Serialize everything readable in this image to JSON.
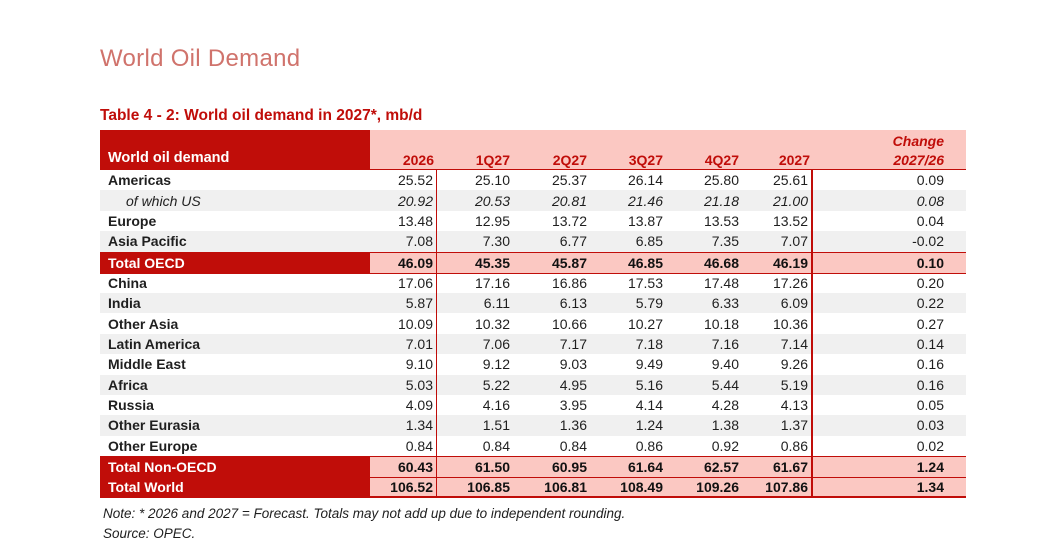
{
  "page_title": "World Oil Demand",
  "table": {
    "caption": "Table 4 - 2: World oil demand in 2027*, mb/d",
    "header": {
      "label": "World oil demand",
      "columns": [
        "2026",
        "1Q27",
        "2Q27",
        "3Q27",
        "4Q27",
        "2027"
      ],
      "change_label_line1": "Change",
      "change_label_line2": "2027/26"
    },
    "rows": [
      {
        "kind": "data",
        "label": "Americas",
        "values": [
          "25.52",
          "25.10",
          "25.37",
          "26.14",
          "25.80",
          "25.61"
        ],
        "change": "0.09"
      },
      {
        "kind": "sub",
        "label": "of which US",
        "values": [
          "20.92",
          "20.53",
          "20.81",
          "21.46",
          "21.18",
          "21.00"
        ],
        "change": "0.08"
      },
      {
        "kind": "data",
        "label": "Europe",
        "values": [
          "13.48",
          "12.95",
          "13.72",
          "13.87",
          "13.53",
          "13.52"
        ],
        "change": "0.04"
      },
      {
        "kind": "data",
        "label": "Asia Pacific",
        "values": [
          "7.08",
          "7.30",
          "6.77",
          "6.85",
          "7.35",
          "7.07"
        ],
        "change": "-0.02"
      },
      {
        "kind": "total",
        "label": "Total OECD",
        "values": [
          "46.09",
          "45.35",
          "45.87",
          "46.85",
          "46.68",
          "46.19"
        ],
        "change": "0.10"
      },
      {
        "kind": "data",
        "label": "China",
        "values": [
          "17.06",
          "17.16",
          "16.86",
          "17.53",
          "17.48",
          "17.26"
        ],
        "change": "0.20"
      },
      {
        "kind": "data",
        "label": "India",
        "values": [
          "5.87",
          "6.11",
          "6.13",
          "5.79",
          "6.33",
          "6.09"
        ],
        "change": "0.22"
      },
      {
        "kind": "data",
        "label": "Other Asia",
        "values": [
          "10.09",
          "10.32",
          "10.66",
          "10.27",
          "10.18",
          "10.36"
        ],
        "change": "0.27"
      },
      {
        "kind": "data",
        "label": "Latin America",
        "values": [
          "7.01",
          "7.06",
          "7.17",
          "7.18",
          "7.16",
          "7.14"
        ],
        "change": "0.14"
      },
      {
        "kind": "data",
        "label": "Middle East",
        "values": [
          "9.10",
          "9.12",
          "9.03",
          "9.49",
          "9.40",
          "9.26"
        ],
        "change": "0.16"
      },
      {
        "kind": "data",
        "label": "Africa",
        "values": [
          "5.03",
          "5.22",
          "4.95",
          "5.16",
          "5.44",
          "5.19"
        ],
        "change": "0.16"
      },
      {
        "kind": "data",
        "label": "Russia",
        "values": [
          "4.09",
          "4.16",
          "3.95",
          "4.14",
          "4.28",
          "4.13"
        ],
        "change": "0.05"
      },
      {
        "kind": "data",
        "label": "Other Eurasia",
        "values": [
          "1.34",
          "1.51",
          "1.36",
          "1.24",
          "1.38",
          "1.37"
        ],
        "change": "0.03"
      },
      {
        "kind": "data",
        "label": "Other Europe",
        "values": [
          "0.84",
          "0.84",
          "0.84",
          "0.86",
          "0.92",
          "0.86"
        ],
        "change": "0.02"
      },
      {
        "kind": "total",
        "label": "Total Non-OECD",
        "values": [
          "60.43",
          "61.50",
          "60.95",
          "61.64",
          "62.57",
          "61.67"
        ],
        "change": "1.24"
      },
      {
        "kind": "total",
        "label": "Total World",
        "values": [
          "106.52",
          "106.85",
          "106.81",
          "108.49",
          "109.26",
          "107.86"
        ],
        "change": "1.34"
      }
    ],
    "note": "Note: * 2026 and 2027 = Forecast. Totals may not add up due to independent rounding.",
    "source": "Source: OPEC."
  },
  "colors": {
    "accent_dark_red": "#C00D09",
    "accent_pink": "#FBC8C2",
    "stripe_gray": "#F0F0F0",
    "title_coral": "#D0736C"
  }
}
